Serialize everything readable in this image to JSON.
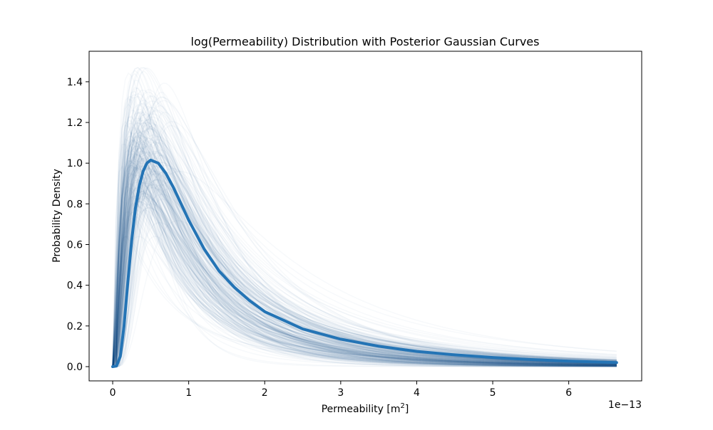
{
  "chart_data": {
    "type": "line",
    "title": "log(Permeability) Distribution with Posterior Gaussian Curves",
    "xlabel": "Permeability [m",
    "xlabel_sup": "2",
    "xlabel_close": "]",
    "ylabel": "Probability Density",
    "x_offset_label": "1e−13",
    "xlim": [
      -0.31,
      6.96
    ],
    "ylim": [
      -0.07,
      1.55
    ],
    "x_ticks": [
      {
        "value": 0,
        "label": "0"
      },
      {
        "value": 1,
        "label": "1"
      },
      {
        "value": 2,
        "label": "2"
      },
      {
        "value": 3,
        "label": "3"
      },
      {
        "value": 4,
        "label": "4"
      },
      {
        "value": 5,
        "label": "5"
      },
      {
        "value": 6,
        "label": "6"
      }
    ],
    "y_ticks": [
      {
        "value": 0.0,
        "label": "0.0"
      },
      {
        "value": 0.2,
        "label": "0.2"
      },
      {
        "value": 0.4,
        "label": "0.4"
      },
      {
        "value": 0.6,
        "label": "0.6"
      },
      {
        "value": 0.8,
        "label": "0.8"
      },
      {
        "value": 1.0,
        "label": "1.0"
      },
      {
        "value": 1.2,
        "label": "1.2"
      },
      {
        "value": 1.4,
        "label": "1.4"
      }
    ],
    "grid": false,
    "legend": "none",
    "x_range_data": [
      0.0,
      6.63
    ],
    "main_series": {
      "color": "#2474b5",
      "peak_x": 0.5,
      "peak_y": 1.015,
      "points": [
        [
          0.0,
          0.0
        ],
        [
          0.05,
          0.003
        ],
        [
          0.1,
          0.05
        ],
        [
          0.15,
          0.2
        ],
        [
          0.2,
          0.42
        ],
        [
          0.25,
          0.62
        ],
        [
          0.3,
          0.78
        ],
        [
          0.35,
          0.89
        ],
        [
          0.4,
          0.96
        ],
        [
          0.45,
          1.0
        ],
        [
          0.5,
          1.015
        ],
        [
          0.6,
          1.0
        ],
        [
          0.7,
          0.95
        ],
        [
          0.8,
          0.88
        ],
        [
          0.9,
          0.8
        ],
        [
          1.0,
          0.72
        ],
        [
          1.2,
          0.58
        ],
        [
          1.4,
          0.47
        ],
        [
          1.6,
          0.39
        ],
        [
          1.8,
          0.325
        ],
        [
          2.0,
          0.27
        ],
        [
          2.5,
          0.185
        ],
        [
          3.0,
          0.135
        ],
        [
          3.5,
          0.1
        ],
        [
          4.0,
          0.075
        ],
        [
          4.5,
          0.058
        ],
        [
          5.0,
          0.045
        ],
        [
          5.5,
          0.035
        ],
        [
          6.0,
          0.027
        ],
        [
          6.63,
          0.02
        ]
      ]
    },
    "posterior_curves": {
      "color": "#1f5f95",
      "count": 300,
      "peak_y_range": [
        0.64,
        1.47
      ],
      "tail_y_at_max_x_range": [
        0.0,
        0.25
      ]
    }
  }
}
